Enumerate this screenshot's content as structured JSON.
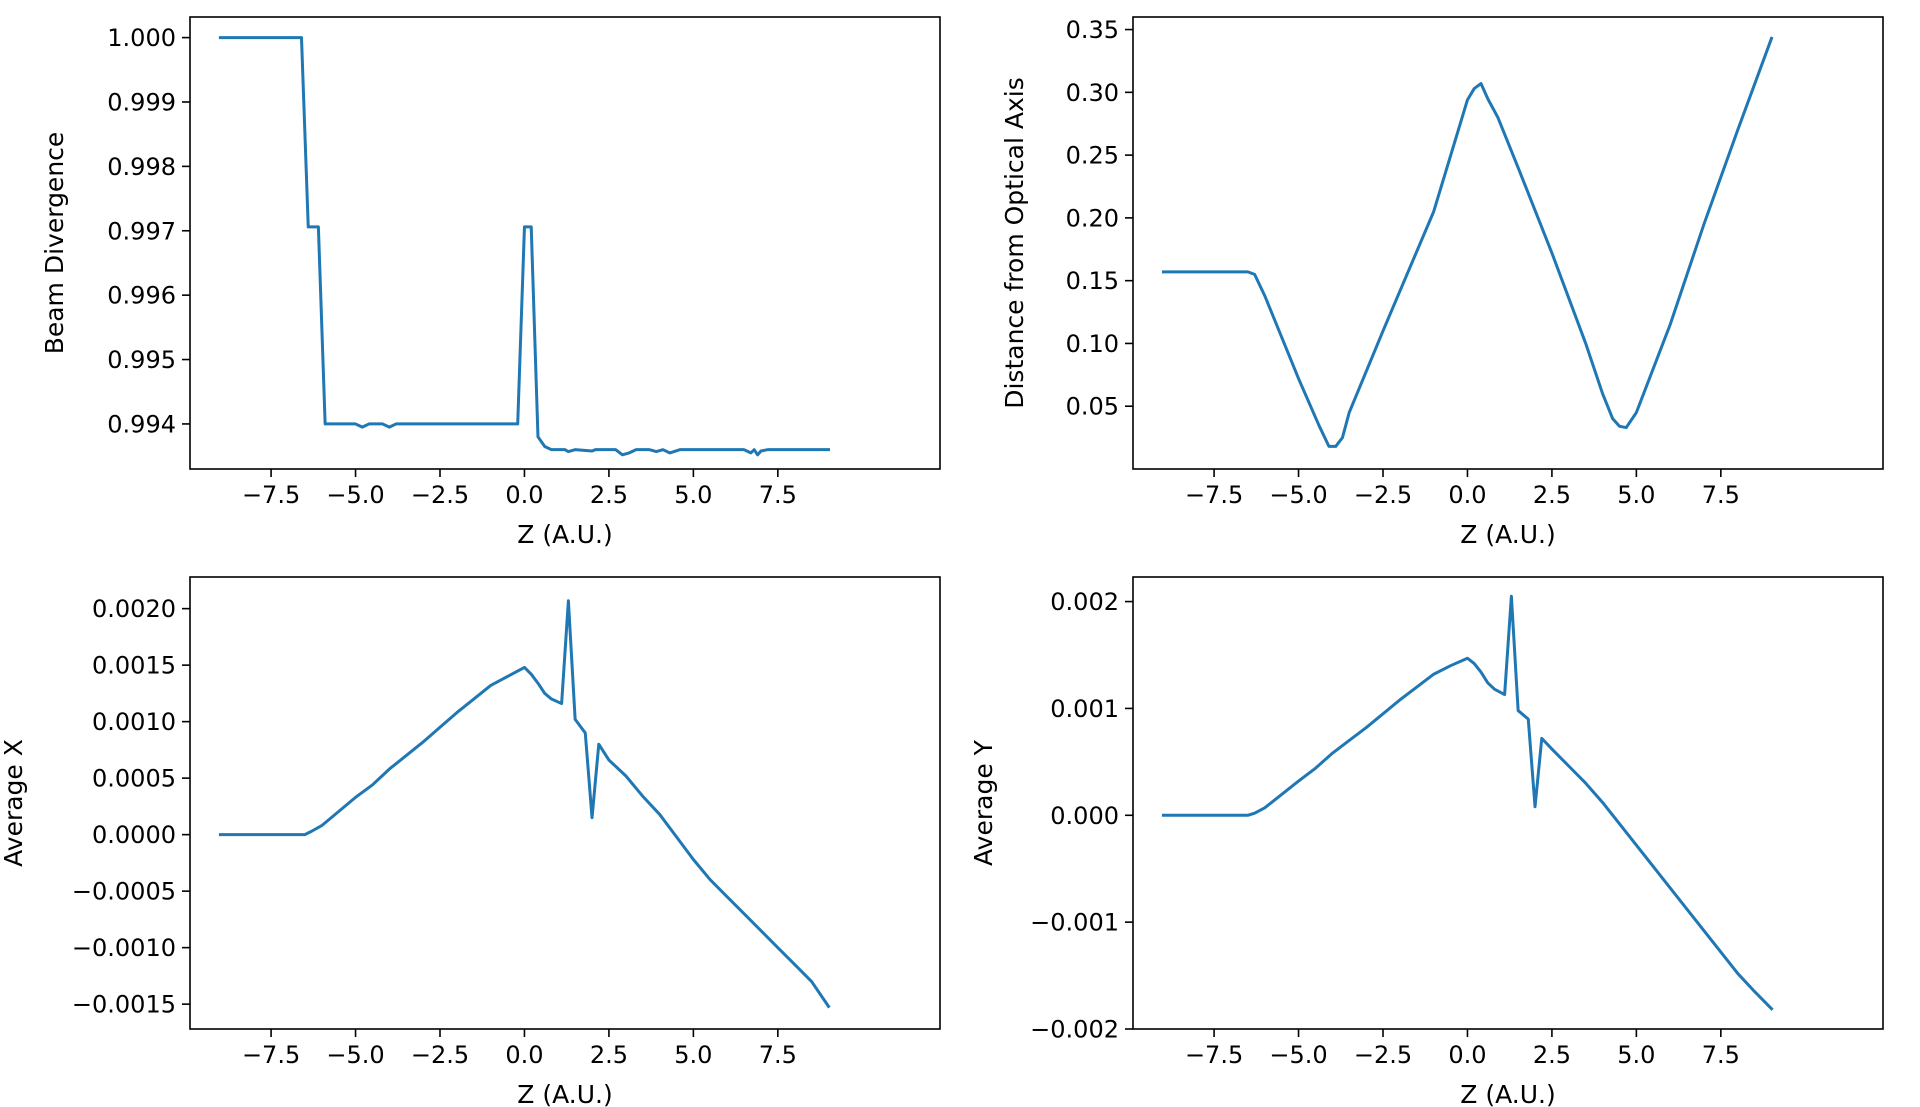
{
  "figure": {
    "line_color": "#1f77b4",
    "axis_color": "#000000",
    "background": "#ffffff"
  },
  "chart_data": [
    {
      "type": "line",
      "xlabel": "Z (A.U.)",
      "ylabel": "Beam Divergence",
      "xlim": [
        -9.9,
        12.3
      ],
      "ylim": [
        0.9933,
        1.00032
      ],
      "xticks": [
        -7.5,
        -5.0,
        -2.5,
        0.0,
        2.5,
        5.0,
        7.5
      ],
      "xtick_labels": [
        "−7.5",
        "−5.0",
        "−2.5",
        "0.0",
        "2.5",
        "5.0",
        "7.5"
      ],
      "yticks": [
        0.994,
        0.995,
        0.996,
        0.997,
        0.998,
        0.999,
        1.0
      ],
      "ytick_labels": [
        "0.994",
        "0.995",
        "0.996",
        "0.997",
        "0.998",
        "0.999",
        "1.000"
      ],
      "grid": false,
      "series": [
        {
          "color": "#1f77b4",
          "x": [
            -9.0,
            -6.6,
            -6.4,
            -6.1,
            -5.9,
            -5.0,
            -4.8,
            -4.6,
            -4.2,
            -4.0,
            -3.8,
            -0.2,
            0.0,
            0.2,
            0.4,
            0.6,
            0.8,
            1.2,
            1.3,
            1.5,
            2.0,
            2.1,
            2.7,
            2.9,
            3.1,
            3.3,
            3.7,
            3.9,
            4.1,
            4.3,
            4.6,
            6.5,
            6.7,
            6.8,
            6.9,
            7.0,
            7.2,
            9.0
          ],
          "y": [
            1.0,
            1.0,
            0.99706,
            0.99706,
            0.994,
            0.994,
            0.99395,
            0.994,
            0.994,
            0.99395,
            0.994,
            0.994,
            0.99706,
            0.99706,
            0.9938,
            0.99365,
            0.9936,
            0.9936,
            0.99357,
            0.9936,
            0.99358,
            0.9936,
            0.9936,
            0.99352,
            0.99355,
            0.9936,
            0.9936,
            0.99357,
            0.9936,
            0.99355,
            0.9936,
            0.9936,
            0.99355,
            0.9936,
            0.99352,
            0.99358,
            0.9936,
            0.9936
          ]
        }
      ]
    },
    {
      "type": "line",
      "xlabel": "Z (A.U.)",
      "ylabel": "Distance from Optical Axis",
      "xlim": [
        -9.9,
        12.3
      ],
      "ylim": [
        0.0,
        0.36
      ],
      "xticks": [
        -7.5,
        -5.0,
        -2.5,
        0.0,
        2.5,
        5.0,
        7.5
      ],
      "xtick_labels": [
        "−7.5",
        "−5.0",
        "−2.5",
        "0.0",
        "2.5",
        "5.0",
        "7.5"
      ],
      "yticks": [
        0.05,
        0.1,
        0.15,
        0.2,
        0.25,
        0.3,
        0.35
      ],
      "ytick_labels": [
        "0.05",
        "0.10",
        "0.15",
        "0.20",
        "0.25",
        "0.30",
        "0.35"
      ],
      "grid": false,
      "series": [
        {
          "color": "#1f77b4",
          "x": [
            -9.0,
            -6.5,
            -6.3,
            -6.0,
            -5.0,
            -4.4,
            -4.1,
            -3.9,
            -3.7,
            -3.5,
            -2.5,
            -1.0,
            0.0,
            0.2,
            0.4,
            0.6,
            0.9,
            1.5,
            2.5,
            3.5,
            4.0,
            4.3,
            4.5,
            4.7,
            5.0,
            6.0,
            7.0,
            8.0,
            9.0
          ],
          "y": [
            0.157,
            0.157,
            0.155,
            0.138,
            0.072,
            0.035,
            0.018,
            0.018,
            0.025,
            0.045,
            0.11,
            0.205,
            0.294,
            0.303,
            0.307,
            0.295,
            0.28,
            0.24,
            0.172,
            0.1,
            0.06,
            0.04,
            0.034,
            0.033,
            0.045,
            0.115,
            0.195,
            0.27,
            0.343
          ]
        }
      ]
    },
    {
      "type": "line",
      "xlabel": "Z (A.U.)",
      "ylabel": "Average X",
      "xlim": [
        -9.9,
        12.3
      ],
      "ylim": [
        -0.00172,
        0.00228
      ],
      "xticks": [
        -7.5,
        -5.0,
        -2.5,
        0.0,
        2.5,
        5.0,
        7.5
      ],
      "xtick_labels": [
        "−7.5",
        "−5.0",
        "−2.5",
        "0.0",
        "2.5",
        "5.0",
        "7.5"
      ],
      "yticks": [
        -0.0015,
        -0.001,
        -0.0005,
        0.0,
        0.0005,
        0.001,
        0.0015,
        0.002
      ],
      "ytick_labels": [
        "−0.0015",
        "−0.0010",
        "−0.0005",
        "0.0000",
        "0.0005",
        "0.0010",
        "0.0015",
        "0.0020"
      ],
      "grid": false,
      "series": [
        {
          "color": "#1f77b4",
          "x": [
            -9.0,
            -6.5,
            -6.3,
            -6.0,
            -5.0,
            -4.5,
            -4.0,
            -3.5,
            -3.0,
            -2.5,
            -2.0,
            -1.5,
            -1.0,
            -0.5,
            0.0,
            0.2,
            0.4,
            0.6,
            0.8,
            1.1,
            1.3,
            1.5,
            1.8,
            2.0,
            2.2,
            2.5,
            3.0,
            3.5,
            4.0,
            4.5,
            5.0,
            5.5,
            6.0,
            6.5,
            7.0,
            7.5,
            8.0,
            8.5,
            9.0
          ],
          "y": [
            0.0,
            0.0,
            3e-05,
            8e-05,
            0.00033,
            0.00044,
            0.00058,
            0.0007,
            0.00082,
            0.00095,
            0.00108,
            0.0012,
            0.00132,
            0.0014,
            0.00148,
            0.00142,
            0.00134,
            0.00125,
            0.0012,
            0.00116,
            0.00207,
            0.00102,
            0.0009,
            0.00015,
            0.0008,
            0.00066,
            0.00052,
            0.00034,
            0.00018,
            -2e-05,
            -0.00022,
            -0.0004,
            -0.00055,
            -0.0007,
            -0.00085,
            -0.001,
            -0.00115,
            -0.0013,
            -0.00152
          ]
        }
      ]
    },
    {
      "type": "line",
      "xlabel": "Z (A.U.)",
      "ylabel": "Average Y",
      "xlim": [
        -9.9,
        12.3
      ],
      "ylim": [
        -0.002,
        0.00223
      ],
      "xticks": [
        -7.5,
        -5.0,
        -2.5,
        0.0,
        2.5,
        5.0,
        7.5
      ],
      "xtick_labels": [
        "−7.5",
        "−5.0",
        "−2.5",
        "0.0",
        "2.5",
        "5.0",
        "7.5"
      ],
      "yticks": [
        -0.002,
        -0.001,
        0.0,
        0.001,
        0.002
      ],
      "ytick_labels": [
        "−0.002",
        "−0.001",
        "0.000",
        "0.001",
        "0.002"
      ],
      "grid": false,
      "series": [
        {
          "color": "#1f77b4",
          "x": [
            -9.0,
            -6.5,
            -6.3,
            -6.0,
            -5.0,
            -4.5,
            -4.0,
            -3.5,
            -3.0,
            -2.5,
            -2.0,
            -1.5,
            -1.0,
            -0.5,
            0.0,
            0.2,
            0.4,
            0.6,
            0.8,
            1.1,
            1.3,
            1.5,
            1.8,
            2.0,
            2.2,
            2.5,
            3.0,
            3.5,
            4.0,
            4.5,
            5.0,
            5.5,
            6.0,
            6.5,
            7.0,
            7.5,
            8.0,
            8.5,
            9.0
          ],
          "y": [
            0.0,
            0.0,
            2e-05,
            7e-05,
            0.00032,
            0.00044,
            0.00058,
            0.0007,
            0.00082,
            0.00095,
            0.00108,
            0.0012,
            0.00132,
            0.0014,
            0.00147,
            0.00142,
            0.00134,
            0.00124,
            0.00118,
            0.00113,
            0.00205,
            0.00098,
            0.0009,
            8e-05,
            0.00072,
            0.00062,
            0.00046,
            0.0003,
            0.00012,
            -8e-05,
            -0.00028,
            -0.00048,
            -0.00068,
            -0.00088,
            -0.00108,
            -0.00128,
            -0.00148,
            -0.00165,
            -0.00181
          ]
        }
      ]
    }
  ]
}
